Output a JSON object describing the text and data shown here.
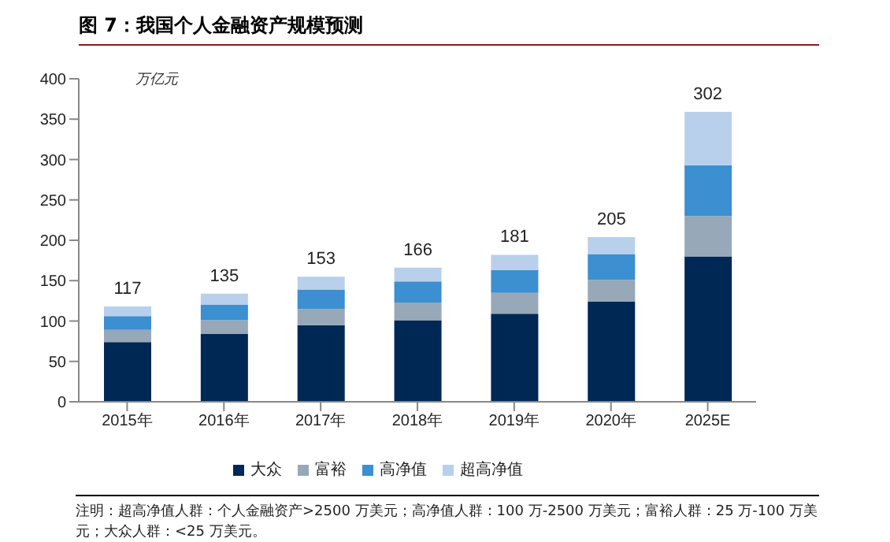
{
  "chart_data": {
    "type": "bar",
    "stacked": true,
    "title": "图 7：我国个人金融资产规模预测",
    "ylabel": "万亿元",
    "categories": [
      "2015年",
      "2016年",
      "2017年",
      "2018年",
      "2019年",
      "2020年",
      "2025E"
    ],
    "series": [
      {
        "name": "大众",
        "color": "#002855",
        "values": [
          74,
          84,
          95,
          101,
          109,
          124,
          180
        ]
      },
      {
        "name": "富裕",
        "color": "#97a8b8",
        "values": [
          15,
          17,
          20,
          22,
          26,
          27,
          50
        ]
      },
      {
        "name": "高净值",
        "color": "#3c8fd0",
        "values": [
          17,
          19,
          24,
          26,
          28,
          32,
          63
        ]
      },
      {
        "name": "超高净值",
        "color": "#b8d0ec",
        "values": [
          12,
          14,
          16,
          17,
          19,
          21,
          66
        ]
      }
    ],
    "totals": [
      "117",
      "135",
      "153",
      "166",
      "181",
      "205",
      null
    ],
    "ylim": [
      0,
      400
    ],
    "yticks": [
      0,
      50,
      100,
      150,
      200,
      250,
      300,
      350,
      400
    ],
    "grid": false,
    "legend": "bottom",
    "annotations": [
      {
        "text": "302",
        "x": "2025E",
        "y": 359
      },
      "注明：超高净值人群：个人金融资产>2500 万美元；高净值人群：100 万-2500 万美元；富裕人群：25 万-100 万美元；大众人群：<25 万美元。"
    ]
  }
}
